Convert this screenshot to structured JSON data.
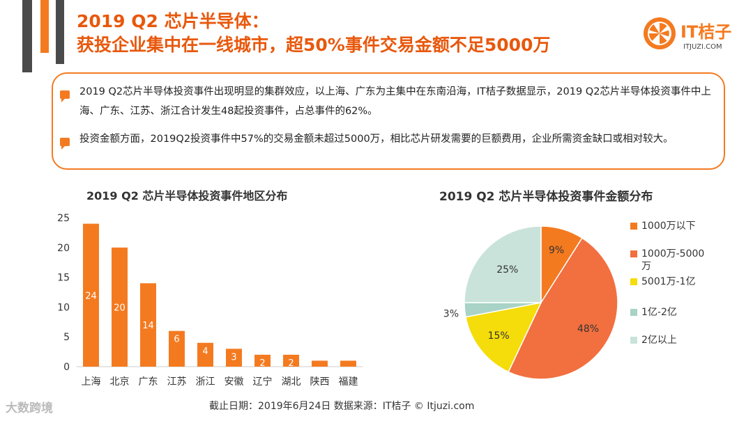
{
  "header": {
    "title_line1": "2019 Q2 芯片半导体：",
    "title_line2": "获投企业集中在一线城市，超50%事件交易金额不足5000万"
  },
  "logo": {
    "name": "IT桔子",
    "domain": "ITJUZI.COM"
  },
  "summary": {
    "items": [
      "2019 Q2芯片半导体投资事件出现明显的集群效应，以上海、广东为主集中在东南沿海，IT桔子数据显示，2019 Q2芯片半导体投资事件中上海、广东、江苏、浙江合计发生48起投资事件，占总事件的62%。",
      "投资金额方面，2019Q2投资事件中57%的交易金额未超过5000万，相比芯片研发需要的巨额费用，企业所需资金缺口或相对较大。"
    ]
  },
  "chart_data": [
    {
      "type": "bar",
      "title": "2019 Q2 芯片半导体投资事件地区分布",
      "categories": [
        "上海",
        "北京",
        "广东",
        "江苏",
        "浙江",
        "安徽",
        "辽宁",
        "湖北",
        "陕西",
        "福建"
      ],
      "values": [
        24,
        20,
        14,
        6,
        4,
        3,
        2,
        2,
        1,
        1
      ],
      "data_labels": [
        "24",
        "20",
        "14",
        "6",
        "4",
        "3",
        "2",
        "2",
        "",
        ""
      ],
      "ylim": [
        0,
        25
      ],
      "yticks": [
        0,
        5,
        10,
        15,
        20,
        25
      ],
      "ytick_labels": [
        "0",
        "5",
        "10",
        "15",
        "20",
        "25"
      ],
      "xlabel": "",
      "ylabel": "",
      "grid": false,
      "color": "#f47a20"
    },
    {
      "type": "pie",
      "title": "2019 Q2 芯片半导体投资事件金额分布",
      "labels": [
        "1000万以下",
        "1000万-5000万",
        "5001万-1亿",
        "1亿-2亿",
        "2亿以上"
      ],
      "legend_lines": [
        [
          "1000万以下"
        ],
        [
          "1000万-5000",
          "万"
        ],
        [
          "5001万-1亿"
        ],
        [
          "1亿-2亿"
        ],
        [
          "2亿以上"
        ]
      ],
      "values": [
        9,
        48,
        15,
        3,
        25
      ],
      "value_labels": [
        "9%",
        "48%",
        "15%",
        "3%",
        "25%"
      ],
      "colors": [
        "#f47a20",
        "#f26f3f",
        "#f5dc0b",
        "#a8d3c6",
        "#c9e3da"
      ],
      "legend": "right"
    }
  ],
  "footer": {
    "text": "截止日期：2019年6月24日    数据来源：IT桔子 © Itjuzi.com"
  },
  "watermark": {
    "text": "大数跨境"
  }
}
